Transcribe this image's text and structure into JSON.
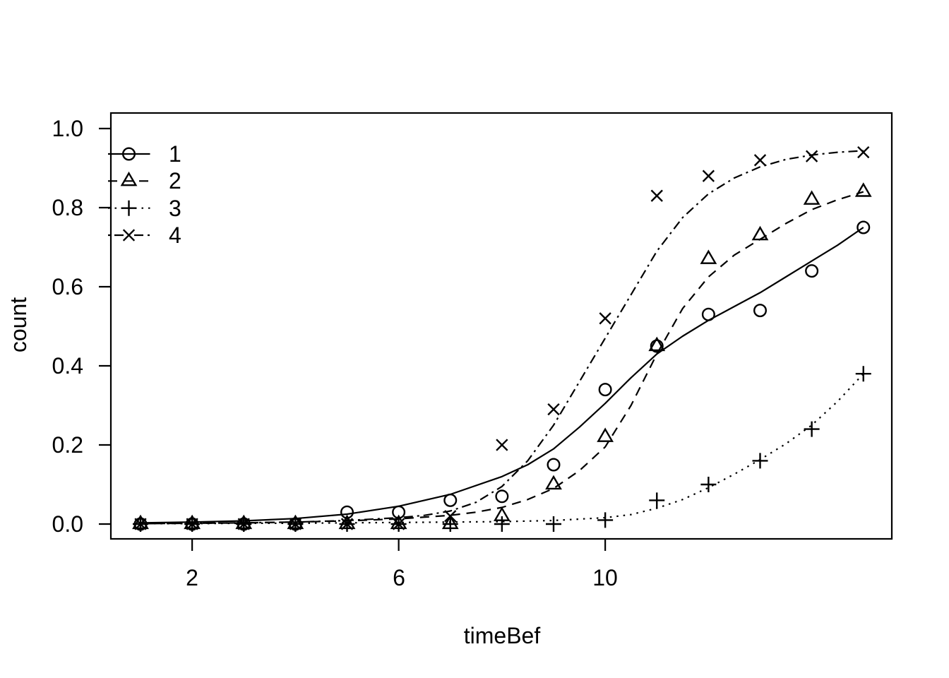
{
  "figure": {
    "background": "#ffffff",
    "foreground": "#000000"
  },
  "chart_data": {
    "type": "scatter",
    "title": "",
    "xlabel": "timeBef",
    "ylabel": "count",
    "xlim": [
      0.43,
      15.56
    ],
    "ylim": [
      -0.04,
      1.04
    ],
    "grid": false,
    "legend_position": "top-left",
    "x_ticks": [
      2,
      6,
      10
    ],
    "x_tick_labels": [
      "2",
      "6",
      "10"
    ],
    "y_ticks": [
      0.0,
      0.2,
      0.4,
      0.6,
      0.8,
      1.0
    ],
    "y_tick_labels": [
      "0.0",
      "0.2",
      "0.4",
      "0.6",
      "0.8",
      "1.0"
    ],
    "x": [
      1,
      2,
      3,
      4,
      5,
      6,
      7,
      8,
      9,
      10,
      11,
      12,
      13,
      14,
      15
    ],
    "series": [
      {
        "name": "1",
        "marker": "circle",
        "linetype": "solid",
        "values": [
          0.0,
          0.0,
          0.0,
          0.0,
          0.03,
          0.03,
          0.06,
          0.07,
          0.15,
          0.34,
          0.45,
          0.53,
          0.54,
          0.64,
          0.75
        ]
      },
      {
        "name": "2",
        "marker": "triangle",
        "linetype": "dashed",
        "values": [
          0.0,
          0.0,
          0.0,
          0.0,
          0.0,
          0.0,
          0.0,
          0.02,
          0.1,
          0.22,
          0.45,
          0.67,
          0.73,
          0.82,
          0.84
        ]
      },
      {
        "name": "3",
        "marker": "plus",
        "linetype": "dotted",
        "values": [
          0.0,
          0.0,
          0.0,
          0.0,
          0.0,
          0.0,
          0.0,
          0.0,
          0.0,
          0.01,
          0.06,
          0.1,
          0.16,
          0.24,
          0.38
        ]
      },
      {
        "name": "4",
        "marker": "x",
        "linetype": "dashdot",
        "values": [
          0.0,
          0.0,
          0.0,
          0.0,
          0.0,
          0.0,
          0.02,
          0.2,
          0.29,
          0.52,
          0.83,
          0.88,
          0.92,
          0.93,
          0.94
        ]
      }
    ],
    "fit_curves": [
      {
        "name": "1",
        "linetype": "solid",
        "points": [
          [
            1,
            0.003
          ],
          [
            2,
            0.005
          ],
          [
            3,
            0.008
          ],
          [
            4,
            0.014
          ],
          [
            5,
            0.025
          ],
          [
            6,
            0.045
          ],
          [
            7,
            0.075
          ],
          [
            8,
            0.12
          ],
          [
            8.5,
            0.15
          ],
          [
            9,
            0.19
          ],
          [
            9.5,
            0.245
          ],
          [
            10,
            0.305
          ],
          [
            10.5,
            0.37
          ],
          [
            11,
            0.43
          ],
          [
            11.5,
            0.475
          ],
          [
            12,
            0.515
          ],
          [
            12.5,
            0.55
          ],
          [
            13,
            0.585
          ],
          [
            13.5,
            0.625
          ],
          [
            14,
            0.665
          ],
          [
            14.5,
            0.705
          ],
          [
            15,
            0.75
          ]
        ]
      },
      {
        "name": "2",
        "linetype": "dashed",
        "points": [
          [
            1,
            0.001
          ],
          [
            2,
            0.002
          ],
          [
            3,
            0.003
          ],
          [
            4,
            0.005
          ],
          [
            5,
            0.008
          ],
          [
            6,
            0.013
          ],
          [
            7,
            0.022
          ],
          [
            7.5,
            0.03
          ],
          [
            8,
            0.042
          ],
          [
            8.5,
            0.062
          ],
          [
            9,
            0.09
          ],
          [
            9.5,
            0.135
          ],
          [
            10,
            0.195
          ],
          [
            10.5,
            0.3
          ],
          [
            11,
            0.43
          ],
          [
            11.5,
            0.545
          ],
          [
            12,
            0.625
          ],
          [
            12.5,
            0.68
          ],
          [
            13,
            0.72
          ],
          [
            13.5,
            0.76
          ],
          [
            14,
            0.795
          ],
          [
            14.5,
            0.82
          ],
          [
            15,
            0.84
          ]
        ]
      },
      {
        "name": "3",
        "linetype": "dotted",
        "points": [
          [
            1,
            0.001
          ],
          [
            2,
            0.001
          ],
          [
            3,
            0.002
          ],
          [
            4,
            0.002
          ],
          [
            5,
            0.003
          ],
          [
            6,
            0.004
          ],
          [
            7,
            0.005
          ],
          [
            8,
            0.006
          ],
          [
            9,
            0.009
          ],
          [
            10,
            0.016
          ],
          [
            10.5,
            0.024
          ],
          [
            11,
            0.04
          ],
          [
            11.5,
            0.062
          ],
          [
            12,
            0.092
          ],
          [
            12.5,
            0.126
          ],
          [
            13,
            0.163
          ],
          [
            13.5,
            0.203
          ],
          [
            14,
            0.25
          ],
          [
            14.5,
            0.31
          ],
          [
            15,
            0.38
          ]
        ]
      },
      {
        "name": "4",
        "linetype": "dashdot",
        "points": [
          [
            1,
            0.001
          ],
          [
            2,
            0.002
          ],
          [
            3,
            0.003
          ],
          [
            4,
            0.005
          ],
          [
            5,
            0.009
          ],
          [
            6,
            0.016
          ],
          [
            6.5,
            0.022
          ],
          [
            7,
            0.033
          ],
          [
            7.5,
            0.055
          ],
          [
            8,
            0.095
          ],
          [
            8.5,
            0.16
          ],
          [
            9,
            0.25
          ],
          [
            9.5,
            0.36
          ],
          [
            10,
            0.47
          ],
          [
            10.5,
            0.58
          ],
          [
            11,
            0.69
          ],
          [
            11.5,
            0.775
          ],
          [
            12,
            0.835
          ],
          [
            12.5,
            0.875
          ],
          [
            13,
            0.903
          ],
          [
            13.5,
            0.922
          ],
          [
            14,
            0.933
          ],
          [
            14.5,
            0.94
          ],
          [
            15,
            0.944
          ]
        ]
      }
    ],
    "legend": [
      {
        "label": "1",
        "marker": "circle",
        "linetype": "solid"
      },
      {
        "label": "2",
        "marker": "triangle",
        "linetype": "dashed"
      },
      {
        "label": "3",
        "marker": "plus",
        "linetype": "dotted"
      },
      {
        "label": "4",
        "marker": "x",
        "linetype": "dashdot"
      }
    ]
  }
}
